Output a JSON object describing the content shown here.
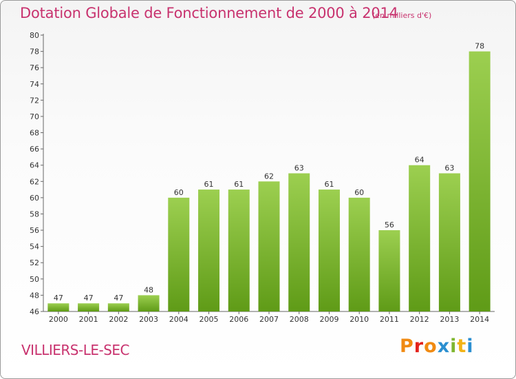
{
  "header": {
    "title": "Dotation Globale de Fonctionnement de 2000 à 2014",
    "unit": "(en milliers d'€)"
  },
  "footer": {
    "place": "VILLIERS-LE-SEC",
    "logo_text": "Proxiti",
    "logo_colors": [
      "#f08a12",
      "#e3221c",
      "#f08a12",
      "#2b8fd0",
      "#7fb630",
      "#f2b316",
      "#2b8fd0"
    ]
  },
  "colors": {
    "title": "#c8326e",
    "bar_light": "#9ccf50",
    "bar_dark": "#5f9b17",
    "grid": "#c8c8c8"
  },
  "chart_data": {
    "type": "bar",
    "title": "Dotation Globale de Fonctionnement de 2000 à 2014",
    "subtitle": "(en milliers d'€)",
    "xlabel": "",
    "ylabel": "",
    "categories": [
      "2000",
      "2001",
      "2002",
      "2003",
      "2004",
      "2005",
      "2006",
      "2007",
      "2008",
      "2009",
      "2010",
      "2011",
      "2012",
      "2013",
      "2014"
    ],
    "values": [
      47,
      47,
      47,
      48,
      60,
      61,
      61,
      62,
      63,
      61,
      60,
      56,
      64,
      63,
      78
    ],
    "ylim": [
      46,
      80
    ],
    "yticks": [
      46,
      48,
      50,
      52,
      54,
      56,
      58,
      60,
      62,
      64,
      66,
      68,
      70,
      72,
      74,
      76,
      78,
      80
    ],
    "grid": false,
    "legend": "none"
  }
}
